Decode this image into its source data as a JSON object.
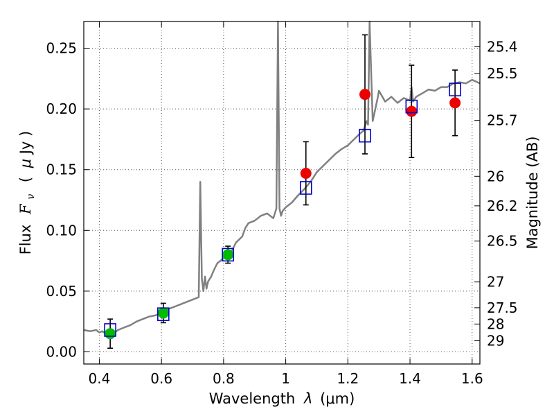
{
  "chart_data": {
    "type": "scatter",
    "xlabel": "Wavelength",
    "xlabel_symbol": "λ",
    "xlabel_unit": "(μm)",
    "ylabel": "Flux",
    "ylabel_symbol": "F",
    "ylabel_subscript": "ν",
    "ylabel_unit_open": "(",
    "ylabel_unit_mu": "μ",
    "ylabel_unit_rest": "Jy )",
    "y2label": "Magnitude (AB)",
    "xlim": [
      0.35,
      1.625
    ],
    "ylim": [
      -0.01,
      0.272
    ],
    "grid": true,
    "x_ticks": [
      {
        "v": 0.4,
        "label": "0.4"
      },
      {
        "v": 0.6,
        "label": "0.6"
      },
      {
        "v": 0.8,
        "label": "0.8"
      },
      {
        "v": 1.0,
        "label": "1"
      },
      {
        "v": 1.2,
        "label": "1.2"
      },
      {
        "v": 1.4,
        "label": "1.4"
      },
      {
        "v": 1.6,
        "label": "1.6"
      }
    ],
    "y_ticks": [
      {
        "v": 0.0,
        "label": "0.00"
      },
      {
        "v": 0.05,
        "label": "0.05"
      },
      {
        "v": 0.1,
        "label": "0.10"
      },
      {
        "v": 0.15,
        "label": "0.15"
      },
      {
        "v": 0.2,
        "label": "0.20"
      },
      {
        "v": 0.25,
        "label": "0.25"
      }
    ],
    "y2_ticks": [
      {
        "label": "25.4",
        "mag": 25.4
      },
      {
        "label": "25.5",
        "mag": 25.5
      },
      {
        "label": "25.7",
        "mag": 25.7
      },
      {
        "label": "26",
        "mag": 26.0
      },
      {
        "label": "26.2",
        "mag": 26.2
      },
      {
        "label": "26.5",
        "mag": 26.5
      },
      {
        "label": "27",
        "mag": 27.0
      },
      {
        "label": "27.5",
        "mag": 27.5
      },
      {
        "label": "28",
        "mag": 28.0
      },
      {
        "label": "29",
        "mag": 29.0
      }
    ],
    "colors": {
      "model": "#808080",
      "optical": "#00bb00",
      "infrared": "#ee0000",
      "model_box": "#0000cc",
      "errorbar": "#000000",
      "grid": "#555555"
    },
    "series": [
      {
        "kind": "model-spectrum",
        "x": [
          0.35,
          0.37,
          0.39,
          0.4,
          0.41,
          0.42,
          0.43,
          0.44,
          0.45,
          0.46,
          0.48,
          0.5,
          0.52,
          0.54,
          0.56,
          0.58,
          0.6,
          0.62,
          0.64,
          0.66,
          0.68,
          0.7,
          0.71,
          0.72,
          0.725,
          0.73,
          0.735,
          0.74,
          0.745,
          0.75,
          0.76,
          0.77,
          0.78,
          0.8,
          0.82,
          0.84,
          0.86,
          0.87,
          0.88,
          0.9,
          0.92,
          0.94,
          0.96,
          0.97,
          0.975,
          0.98,
          0.985,
          0.99,
          1.0,
          1.02,
          1.04,
          1.06,
          1.08,
          1.1,
          1.12,
          1.14,
          1.16,
          1.18,
          1.2,
          1.22,
          1.24,
          1.25,
          1.255,
          1.26,
          1.265,
          1.27,
          1.28,
          1.285,
          1.29,
          1.295,
          1.3,
          1.32,
          1.34,
          1.36,
          1.38,
          1.4,
          1.405,
          1.41,
          1.42,
          1.44,
          1.46,
          1.48,
          1.5,
          1.52,
          1.54,
          1.56,
          1.58,
          1.6,
          1.625
        ],
        "y": [
          0.018,
          0.017,
          0.018,
          0.016,
          0.017,
          0.015,
          0.016,
          0.017,
          0.016,
          0.018,
          0.02,
          0.022,
          0.025,
          0.027,
          0.029,
          0.03,
          0.032,
          0.035,
          0.037,
          0.039,
          0.041,
          0.043,
          0.044,
          0.045,
          0.14,
          0.06,
          0.05,
          0.062,
          0.052,
          0.058,
          0.062,
          0.068,
          0.073,
          0.077,
          0.08,
          0.09,
          0.095,
          0.102,
          0.106,
          0.108,
          0.112,
          0.114,
          0.11,
          0.118,
          0.272,
          0.118,
          0.112,
          0.116,
          0.119,
          0.123,
          0.129,
          0.134,
          0.14,
          0.148,
          0.153,
          0.158,
          0.163,
          0.167,
          0.17,
          0.175,
          0.18,
          0.182,
          0.186,
          0.19,
          0.187,
          0.272,
          0.19,
          0.196,
          0.202,
          0.208,
          0.215,
          0.206,
          0.21,
          0.205,
          0.209,
          0.207,
          0.218,
          0.206,
          0.21,
          0.213,
          0.216,
          0.215,
          0.218,
          0.218,
          0.221,
          0.222,
          0.221,
          0.224,
          0.221
        ]
      },
      {
        "kind": "observed-optical",
        "x": [
          0.435,
          0.606,
          0.814
        ],
        "y": [
          0.015,
          0.032,
          0.08
        ],
        "yerr": [
          0.012,
          0.008,
          0.007
        ]
      },
      {
        "kind": "observed-infrared",
        "x": [
          1.065,
          1.255,
          1.405,
          1.545
        ],
        "y": [
          0.147,
          0.212,
          0.198,
          0.205
        ],
        "yerr": [
          0.026,
          0.049,
          0.038,
          0.027
        ]
      },
      {
        "kind": "model-photometry",
        "x": [
          0.435,
          0.606,
          0.814,
          1.065,
          1.255,
          1.405,
          1.545
        ],
        "y": [
          0.018,
          0.031,
          0.08,
          0.135,
          0.178,
          0.202,
          0.216
        ]
      }
    ]
  }
}
